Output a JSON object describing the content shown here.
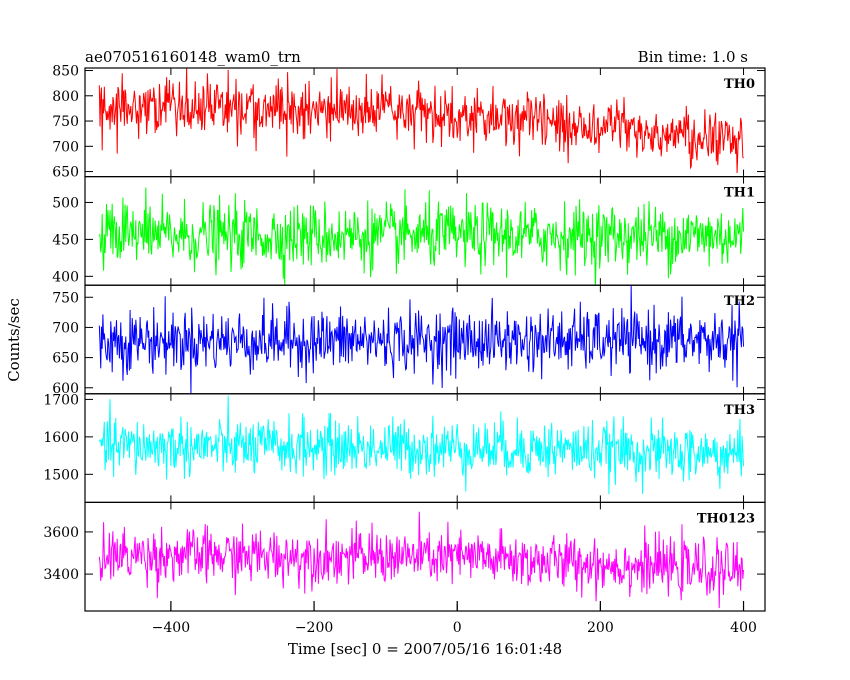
{
  "header": {
    "title": "ae070516160148_wam0_trn",
    "bin_time": "Bin time: 1.0 s"
  },
  "chart_data": {
    "type": "line",
    "xlabel": "Time [sec] 0 = 2007/05/16 16:01:48",
    "ylabel": "Counts/sec",
    "xlim": [
      -520,
      430
    ],
    "x_range": [
      -500,
      400
    ],
    "x_step": 1,
    "x_ticks": [
      -400,
      -200,
      0,
      200,
      400
    ],
    "x_tick_labels": [
      "−400",
      "−200",
      "0",
      "200",
      "400"
    ],
    "grid": false,
    "panels": [
      {
        "name": "TH0",
        "color": "#ff0000",
        "ylim": [
          640,
          855
        ],
        "y_ticks": [
          650,
          700,
          750,
          800,
          850
        ],
        "trend": [
          [
            -500,
            775
          ],
          [
            -60,
            770
          ],
          [
            100,
            750
          ],
          [
            400,
            712
          ]
        ],
        "noise": 28
      },
      {
        "name": "TH1",
        "color": "#00ff00",
        "ylim": [
          388,
          535
        ],
        "y_ticks": [
          400,
          450,
          500
        ],
        "trend": [
          [
            -500,
            455
          ],
          [
            400,
            455
          ]
        ],
        "noise": 22
      },
      {
        "name": "TH2",
        "color": "#0000ff",
        "ylim": [
          590,
          770
        ],
        "y_ticks": [
          600,
          650,
          700,
          750
        ],
        "trend": [
          [
            -500,
            678
          ],
          [
            400,
            678
          ]
        ],
        "noise": 26
      },
      {
        "name": "TH3",
        "color": "#00ffff",
        "ylim": [
          1425,
          1715
        ],
        "y_ticks": [
          1500,
          1600,
          1700
        ],
        "trend": [
          [
            -500,
            1575
          ],
          [
            100,
            1570
          ],
          [
            400,
            1550
          ]
        ],
        "noise": 38
      },
      {
        "name": "TH0123",
        "color": "#ff00ff",
        "ylim": [
          3225,
          3740
        ],
        "y_ticks": [
          3400,
          3600
        ],
        "trend": [
          [
            -500,
            3490
          ],
          [
            0,
            3480
          ],
          [
            400,
            3415
          ]
        ],
        "noise": 65
      }
    ]
  }
}
